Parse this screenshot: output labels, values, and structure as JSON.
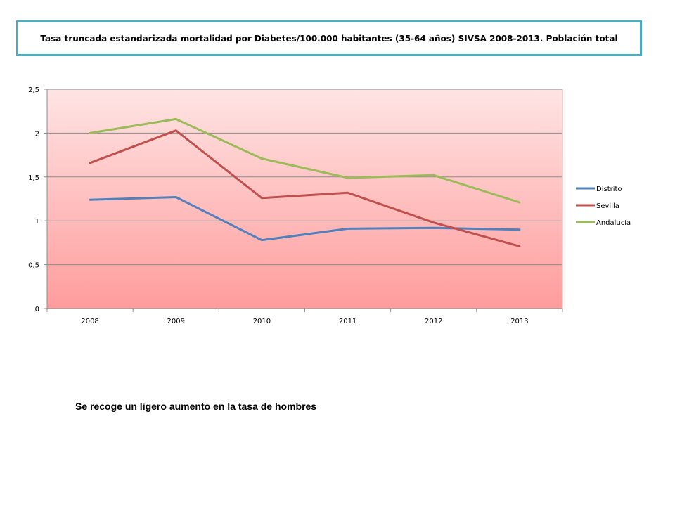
{
  "title": "Tasa truncada estandarizada mortalidad por Diabetes/100.000 habitantes (35-64 años) SIVSA 2008-2013. Población total",
  "note": "Se recoge un  ligero aumento en la tasa de hombres",
  "chart_data": {
    "type": "line",
    "title": "Tasa truncada estandarizada mortalidad por Diabetes/100.000 habitantes (35-64 años) SIVSA 2008-2013. Población total",
    "categories": [
      "2008",
      "2009",
      "2010",
      "2011",
      "2012",
      "2013"
    ],
    "y_ticks": [
      "0",
      "0,5",
      "1",
      "1,5",
      "2",
      "2,5"
    ],
    "y_tick_values": [
      0,
      0.5,
      1,
      1.5,
      2,
      2.5
    ],
    "ylim": [
      0,
      2.5
    ],
    "grid": true,
    "legend_position": "right",
    "background": "gradient light pink to pink",
    "series": [
      {
        "name": "Distrito",
        "color": "#4f81bd",
        "values": [
          1.24,
          1.27,
          0.78,
          0.91,
          0.92,
          0.9
        ]
      },
      {
        "name": "Sevilla",
        "color": "#c0504d",
        "values": [
          1.66,
          2.03,
          1.26,
          1.32,
          0.98,
          0.71
        ]
      },
      {
        "name": "Andalucía",
        "color": "#9bbb59",
        "values": [
          2.0,
          2.16,
          1.71,
          1.49,
          1.52,
          1.21
        ]
      }
    ]
  }
}
